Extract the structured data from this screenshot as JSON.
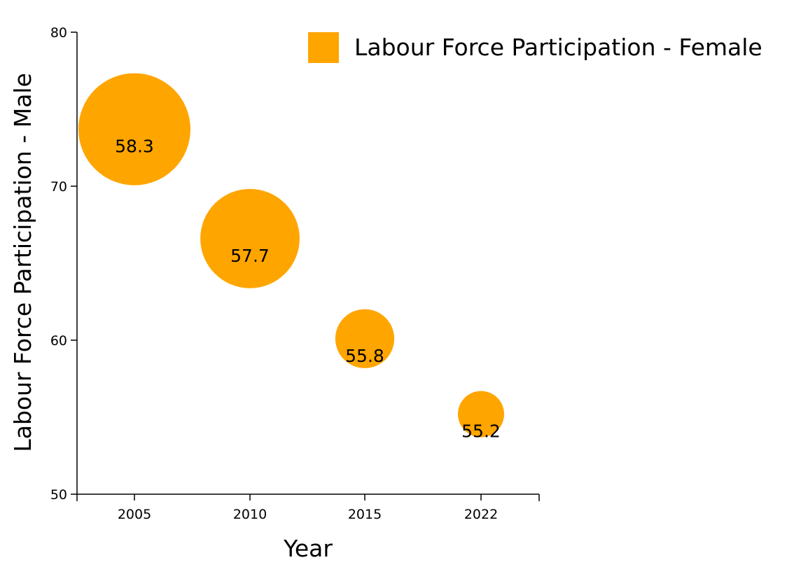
{
  "chart_data": {
    "type": "scatter",
    "subtype": "bubble",
    "title": "",
    "xlabel": "Year",
    "ylabel": "Labour Force Participation - Male",
    "categories": [
      "2005",
      "2010",
      "2015",
      "2022"
    ],
    "ylim": [
      50,
      80
    ],
    "yticks": [
      50,
      60,
      70,
      80
    ],
    "legend": {
      "position": "top-right",
      "entries": [
        "Labour Force Participation - Female"
      ]
    },
    "grid": false,
    "series": [
      {
        "name": "Labour Force Participation - Female",
        "color": "#ffa500",
        "points": [
          {
            "x": "2005",
            "y": 73.7,
            "size": 58.3,
            "label": "58.3"
          },
          {
            "x": "2010",
            "y": 66.6,
            "size": 57.7,
            "label": "57.7"
          },
          {
            "x": "2015",
            "y": 60.1,
            "size": 55.8,
            "label": "55.8"
          },
          {
            "x": "2022",
            "y": 55.2,
            "size": 55.2,
            "label": "55.2"
          }
        ]
      }
    ]
  }
}
